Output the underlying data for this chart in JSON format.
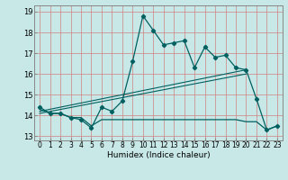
{
  "title": "",
  "xlabel": "Humidex (Indice chaleur)",
  "bg_color": "#c8e8e8",
  "line_color": "#006060",
  "grid_color": "#d08080",
  "xlim": [
    -0.5,
    23.5
  ],
  "ylim": [
    12.8,
    19.3
  ],
  "yticks": [
    13,
    14,
    15,
    16,
    17,
    18,
    19
  ],
  "xticks": [
    0,
    1,
    2,
    3,
    4,
    5,
    6,
    7,
    8,
    9,
    10,
    11,
    12,
    13,
    14,
    15,
    16,
    17,
    18,
    19,
    20,
    21,
    22,
    23
  ],
  "line1_x": [
    0,
    1,
    2,
    3,
    4,
    5,
    6,
    7,
    8,
    9,
    10,
    11,
    12,
    13,
    14,
    15,
    16,
    17,
    18,
    19,
    20,
    21,
    22,
    23
  ],
  "line1_y": [
    14.4,
    14.1,
    14.1,
    13.9,
    13.8,
    13.4,
    14.4,
    14.2,
    14.7,
    16.6,
    18.8,
    18.1,
    17.4,
    17.5,
    17.6,
    16.3,
    17.3,
    16.8,
    16.9,
    16.3,
    16.2,
    14.8,
    13.3,
    13.5
  ],
  "line2_x": [
    0,
    1,
    2,
    3,
    4,
    5,
    6,
    7,
    8,
    9,
    10,
    11,
    12,
    13,
    14,
    15,
    16,
    17,
    18,
    19,
    20,
    21,
    22,
    23
  ],
  "line2_y": [
    14.3,
    14.1,
    14.1,
    13.9,
    13.9,
    13.5,
    13.8,
    13.8,
    13.8,
    13.8,
    13.8,
    13.8,
    13.8,
    13.8,
    13.8,
    13.8,
    13.8,
    13.8,
    13.8,
    13.8,
    13.7,
    13.7,
    13.3,
    13.5
  ],
  "line3_x": [
    0,
    20
  ],
  "line3_y": [
    14.2,
    16.2
  ],
  "line4_x": [
    0,
    20
  ],
  "line4_y": [
    14.1,
    16.0
  ]
}
